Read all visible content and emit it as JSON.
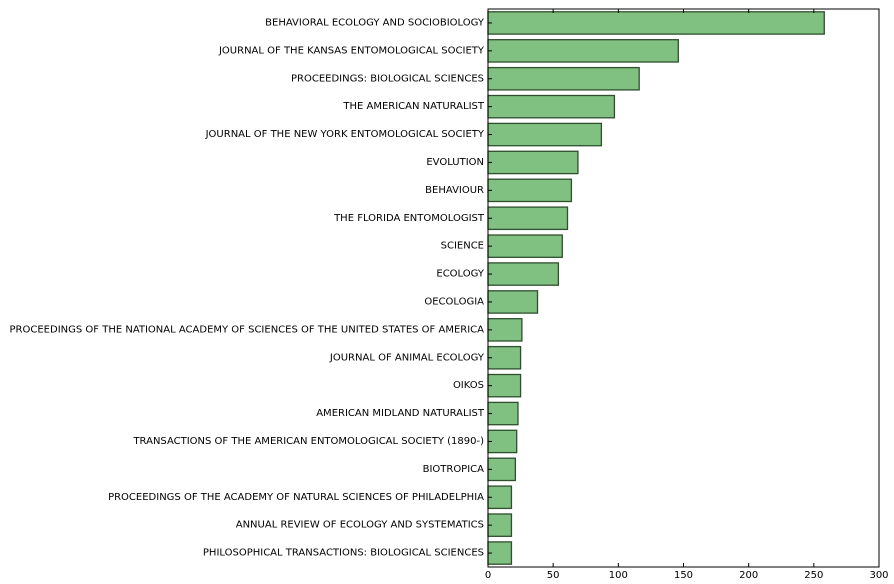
{
  "chart_data": {
    "type": "bar",
    "orientation": "horizontal",
    "categories": [
      "BEHAVIORAL ECOLOGY AND SOCIOBIOLOGY",
      "JOURNAL OF THE KANSAS ENTOMOLOGICAL SOCIETY",
      "PROCEEDINGS: BIOLOGICAL SCIENCES",
      "THE AMERICAN NATURALIST",
      "JOURNAL OF THE NEW YORK ENTOMOLOGICAL SOCIETY",
      "EVOLUTION",
      "BEHAVIOUR",
      "THE FLORIDA ENTOMOLOGIST",
      "SCIENCE",
      "ECOLOGY",
      "OECOLOGIA",
      "PROCEEDINGS OF THE NATIONAL ACADEMY OF SCIENCES OF THE UNITED STATES OF AMERICA",
      "JOURNAL OF ANIMAL ECOLOGY",
      "OIKOS",
      "AMERICAN MIDLAND NATURALIST",
      "TRANSACTIONS OF THE AMERICAN ENTOMOLOGICAL SOCIETY (1890-)",
      "BIOTROPICA",
      "PROCEEDINGS OF THE ACADEMY OF NATURAL SCIENCES OF PHILADELPHIA",
      "ANNUAL REVIEW OF ECOLOGY AND SYSTEMATICS",
      "PHILOSOPHICAL TRANSACTIONS: BIOLOGICAL SCIENCES"
    ],
    "values": [
      258,
      146,
      116,
      97,
      87,
      69,
      64,
      61,
      57,
      54,
      38,
      26,
      25,
      25,
      23,
      22,
      21,
      18,
      18,
      18
    ],
    "xlim": [
      0,
      300
    ],
    "xticks": [
      0,
      50,
      100,
      150,
      200,
      250,
      300
    ],
    "title": "",
    "xlabel": "",
    "ylabel": "",
    "grid": false,
    "bar_color": "#80c080",
    "edge_color": "#2f4f2f"
  }
}
